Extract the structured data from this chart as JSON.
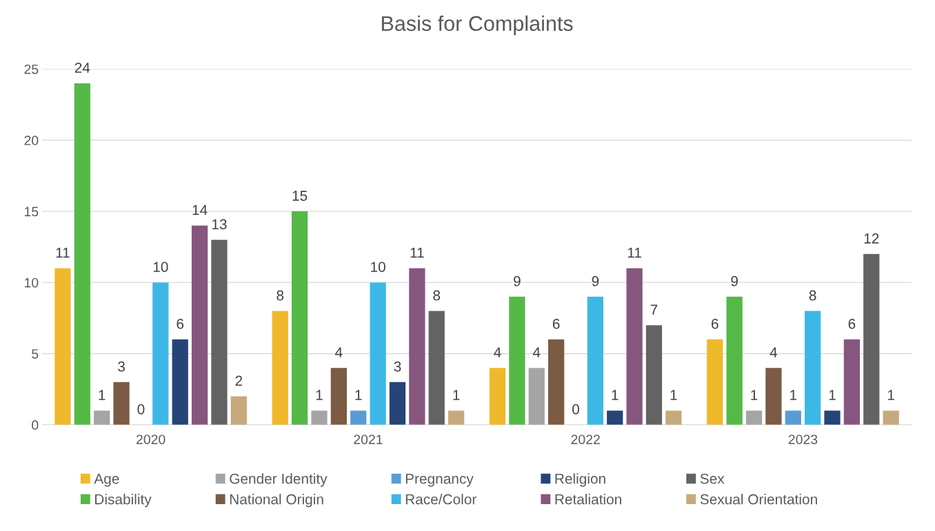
{
  "chart_data": {
    "type": "bar",
    "title": "Basis for Complaints",
    "categories": [
      "2020",
      "2021",
      "2022",
      "2023"
    ],
    "series": [
      {
        "name": "Age",
        "color": "#f0b92c",
        "values": [
          11,
          8,
          4,
          6
        ]
      },
      {
        "name": "Disability",
        "color": "#55b948",
        "values": [
          24,
          15,
          9,
          9
        ]
      },
      {
        "name": "Gender Identity",
        "color": "#a5a5a5",
        "values": [
          1,
          1,
          4,
          1
        ]
      },
      {
        "name": "National Origin",
        "color": "#7b5b43",
        "values": [
          3,
          4,
          6,
          4
        ]
      },
      {
        "name": "Pregnancy",
        "color": "#5b9bd5",
        "values": [
          0,
          1,
          0,
          1
        ]
      },
      {
        "name": "Race/Color",
        "color": "#3db8e6",
        "values": [
          10,
          10,
          9,
          8
        ]
      },
      {
        "name": "Religion",
        "color": "#264478",
        "values": [
          6,
          3,
          1,
          1
        ]
      },
      {
        "name": "Retaliation",
        "color": "#86567f",
        "values": [
          14,
          11,
          11,
          6
        ]
      },
      {
        "name": "Sex",
        "color": "#636363",
        "values": [
          13,
          8,
          7,
          12
        ]
      },
      {
        "name": "Sexual Orientation",
        "color": "#c8a97e",
        "values": [
          2,
          1,
          1,
          1
        ]
      }
    ],
    "ylim": [
      0,
      25
    ],
    "yticks": [
      0,
      5,
      10,
      15,
      20,
      25
    ],
    "grid": "y",
    "legend": "bottom",
    "data_labels": true
  }
}
